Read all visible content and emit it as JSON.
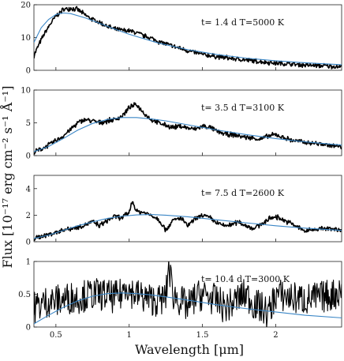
{
  "chart_data": [
    {
      "type": "line",
      "annotation": "t= 1.4 d T=5000 K",
      "xlim": [
        0.35,
        2.45
      ],
      "ylim": [
        0,
        20
      ],
      "yticks": [
        "0",
        "10",
        "20"
      ],
      "show_xticklabels": false,
      "series": [
        {
          "role": "spectrum",
          "color": "#000000",
          "x": [
            0.35,
            0.38,
            0.42,
            0.46,
            0.5,
            0.55,
            0.6,
            0.65,
            0.7,
            0.75,
            0.8,
            0.85,
            0.9,
            0.95,
            1.0,
            1.05,
            1.1,
            1.15,
            1.2,
            1.3,
            1.4,
            1.5,
            1.6,
            1.7,
            1.8,
            1.9,
            2.0,
            2.1,
            2.2,
            2.3,
            2.45
          ],
          "y": [
            4.5,
            7.5,
            11,
            14,
            16.5,
            18.5,
            19,
            18.5,
            16.8,
            15.5,
            14.5,
            13.5,
            12.5,
            12.2,
            12,
            11.5,
            10.5,
            9.8,
            8.8,
            7.3,
            6,
            4.8,
            4.2,
            3.6,
            3.1,
            2.6,
            2.2,
            1.9,
            1.6,
            1.4,
            1.1
          ]
        },
        {
          "role": "blackbody",
          "color": "#3a86c6",
          "x": [
            0.35,
            0.4,
            0.45,
            0.5,
            0.55,
            0.6,
            0.7,
            0.8,
            0.9,
            1.0,
            1.2,
            1.4,
            1.6,
            1.8,
            2.0,
            2.2,
            2.45
          ],
          "y": [
            8.5,
            13,
            15.5,
            17,
            17.5,
            17.3,
            16,
            14.3,
            12.6,
            11,
            8.3,
            6.3,
            4.8,
            3.7,
            2.9,
            2.3,
            1.7
          ]
        }
      ]
    },
    {
      "type": "line",
      "annotation": "t= 3.5 d T=3100 K",
      "xlim": [
        0.35,
        2.45
      ],
      "ylim": [
        0,
        10
      ],
      "yticks": [
        "0",
        "5",
        "10"
      ],
      "show_xticklabels": false,
      "series": [
        {
          "role": "spectrum",
          "color": "#000000",
          "x": [
            0.35,
            0.4,
            0.45,
            0.5,
            0.55,
            0.6,
            0.65,
            0.7,
            0.75,
            0.8,
            0.85,
            0.9,
            0.95,
            1.0,
            1.05,
            1.1,
            1.15,
            1.2,
            1.25,
            1.3,
            1.35,
            1.4,
            1.45,
            1.5,
            1.55,
            1.6,
            1.65,
            1.7,
            1.8,
            1.9,
            1.95,
            2.0,
            2.1,
            2.2,
            2.3,
            2.45
          ],
          "y": [
            0.5,
            1.0,
            1.6,
            2.3,
            3.0,
            4.0,
            5.0,
            5.5,
            5.3,
            5.0,
            5.3,
            5.5,
            6.0,
            7.3,
            7.8,
            6.5,
            5.5,
            5.0,
            4.6,
            4.3,
            4.5,
            4.2,
            4.0,
            4.5,
            4.3,
            3.7,
            3.3,
            3.2,
            2.8,
            2.5,
            3.0,
            3.2,
            2.4,
            2.0,
            1.8,
            1.3
          ]
        },
        {
          "role": "blackbody",
          "color": "#3a86c6",
          "x": [
            0.35,
            0.45,
            0.55,
            0.65,
            0.75,
            0.85,
            0.95,
            1.05,
            1.15,
            1.25,
            1.4,
            1.6,
            1.8,
            2.0,
            2.2,
            2.45
          ],
          "y": [
            0.6,
            1.4,
            2.6,
            3.9,
            4.9,
            5.5,
            5.8,
            5.8,
            5.6,
            5.3,
            4.7,
            3.9,
            3.2,
            2.6,
            2.1,
            1.6
          ]
        }
      ]
    },
    {
      "type": "line",
      "annotation": "t= 7.5 d T=2600 K",
      "xlim": [
        0.35,
        2.45
      ],
      "ylim": [
        0,
        5
      ],
      "yticks": [
        "0",
        "2",
        "4"
      ],
      "show_xticklabels": false,
      "series": [
        {
          "role": "spectrum",
          "color": "#000000",
          "x": [
            0.35,
            0.4,
            0.45,
            0.5,
            0.55,
            0.6,
            0.65,
            0.7,
            0.75,
            0.8,
            0.85,
            0.9,
            0.95,
            1.0,
            1.02,
            1.05,
            1.1,
            1.15,
            1.2,
            1.25,
            1.3,
            1.35,
            1.4,
            1.45,
            1.5,
            1.55,
            1.6,
            1.65,
            1.7,
            1.75,
            1.8,
            1.85,
            1.9,
            1.95,
            2.0,
            2.1,
            2.2,
            2.3,
            2.45
          ],
          "y": [
            0.2,
            0.4,
            0.55,
            0.7,
            0.9,
            1.0,
            1.1,
            1.3,
            1.5,
            1.2,
            1.6,
            1.9,
            1.8,
            2.2,
            3.1,
            2.3,
            2.2,
            2.0,
            1.7,
            0.9,
            1.6,
            1.8,
            1.2,
            1.7,
            2.0,
            1.8,
            1.4,
            1.2,
            1.3,
            1.5,
            1.2,
            1.0,
            1.3,
            1.7,
            1.9,
            1.4,
            0.8,
            1.0,
            0.9
          ]
        },
        {
          "role": "blackbody",
          "color": "#3a86c6",
          "x": [
            0.35,
            0.45,
            0.55,
            0.65,
            0.75,
            0.85,
            0.95,
            1.05,
            1.15,
            1.25,
            1.4,
            1.6,
            1.8,
            2.0,
            2.2,
            2.45
          ],
          "y": [
            0.25,
            0.5,
            0.85,
            1.2,
            1.5,
            1.75,
            1.92,
            2.02,
            2.05,
            2.0,
            1.88,
            1.65,
            1.42,
            1.2,
            1.02,
            0.85
          ]
        }
      ]
    },
    {
      "type": "line",
      "annotation": "t= 10.4 d T=3000 K",
      "xlim": [
        0.35,
        2.45
      ],
      "ylim": [
        0,
        1
      ],
      "yticks": [
        "0",
        "0.5",
        "1"
      ],
      "show_xticklabels": true,
      "xticks": [
        0.5,
        1,
        1.5,
        2
      ],
      "xticklabels": [
        "0.5",
        "1",
        "1.5",
        "2"
      ],
      "series": [
        {
          "role": "spectrum",
          "color": "#000000",
          "noisy": true,
          "x": [
            0.35,
            0.4,
            0.45,
            0.5,
            0.55,
            0.6,
            0.65,
            0.7,
            0.75,
            0.8,
            0.85,
            0.9,
            0.95,
            0.98,
            1.0,
            1.05,
            1.1,
            1.15,
            1.2,
            1.25,
            1.27,
            1.3,
            1.35,
            1.4,
            1.45,
            1.5,
            1.55,
            1.6,
            1.65,
            1.7,
            1.75,
            1.8,
            1.85,
            1.9,
            1.95,
            2.0,
            2.1,
            2.2,
            2.3,
            2.4,
            2.45
          ],
          "y": [
            0.3,
            0.35,
            0.4,
            0.4,
            0.42,
            0.45,
            0.45,
            0.48,
            0.5,
            0.5,
            0.48,
            0.45,
            0.5,
            0.7,
            0.55,
            0.5,
            0.45,
            0.42,
            0.4,
            0.45,
            0.95,
            0.5,
            0.4,
            0.3,
            0.45,
            0.5,
            0.45,
            0.4,
            0.3,
            0.35,
            0.45,
            0.5,
            0.35,
            0.3,
            0.2,
            0.5,
            0.45,
            0.42,
            0.45,
            0.5,
            0.55
          ]
        },
        {
          "role": "blackbody",
          "color": "#3a86c6",
          "x": [
            0.35,
            0.45,
            0.55,
            0.65,
            0.75,
            0.85,
            0.95,
            1.05,
            1.15,
            1.25,
            1.4,
            1.6,
            1.8,
            2.0,
            2.2,
            2.45
          ],
          "y": [
            0.05,
            0.18,
            0.3,
            0.4,
            0.47,
            0.51,
            0.52,
            0.51,
            0.49,
            0.46,
            0.41,
            0.34,
            0.28,
            0.23,
            0.18,
            0.14
          ]
        }
      ]
    }
  ],
  "axis_labels": {
    "ylabel": "Flux [10⁻¹⁷ erg cm⁻² s⁻¹ Å⁻¹]",
    "xlabel": "Wavelength [μm]"
  }
}
